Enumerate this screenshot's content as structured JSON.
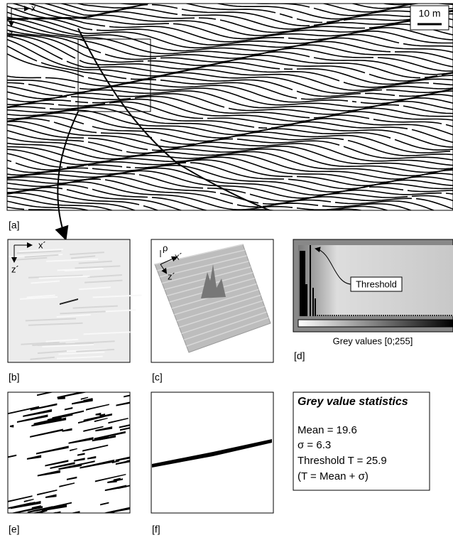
{
  "panel_a": {
    "label": "[a]",
    "x_axis": "x",
    "z_axis": "z",
    "scale_bar": "10 m"
  },
  "panel_b": {
    "label": "[b]",
    "x_axis": "x´",
    "z_axis": "z´"
  },
  "panel_c": {
    "label": "[c]",
    "rho_axis": "ρ",
    "x_axis": "x´",
    "z_axis": "z´"
  },
  "panel_d": {
    "label": "[d]",
    "annotation": "Threshold",
    "x_caption": "Grey values [0;255]"
  },
  "panel_e": {
    "label": "[e]"
  },
  "panel_f": {
    "label": "[f]"
  },
  "statistics": {
    "title": "Grey value statistics",
    "lines": [
      "Mean = 19.6",
      "σ = 6.3",
      "Threshold T = 25.9",
      "(T = Mean + σ)"
    ]
  }
}
